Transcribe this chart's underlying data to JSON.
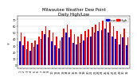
{
  "title_line1": "Milwaukee Weather Dew Point",
  "title_line2": "Daily High/Low",
  "ylabel_left": "°F",
  "background_color": "#ffffff",
  "grid_color": "#cccccc",
  "high_color": "#ff0000",
  "low_color": "#0000cc",
  "days": [
    1,
    2,
    3,
    4,
    5,
    6,
    7,
    8,
    9,
    10,
    11,
    12,
    13,
    14,
    15,
    16,
    17,
    18,
    19,
    20,
    21,
    22,
    23,
    24,
    25,
    26,
    27,
    28,
    29,
    30,
    31
  ],
  "highs": [
    50,
    44,
    36,
    34,
    38,
    44,
    52,
    60,
    54,
    50,
    44,
    38,
    56,
    62,
    55,
    48,
    44,
    48,
    52,
    55,
    58,
    62,
    66,
    68,
    70,
    66,
    60,
    52,
    48,
    56,
    42
  ],
  "lows": [
    36,
    30,
    24,
    22,
    28,
    32,
    40,
    48,
    42,
    36,
    30,
    26,
    42,
    50,
    42,
    34,
    32,
    34,
    38,
    42,
    44,
    50,
    52,
    54,
    56,
    50,
    44,
    40,
    32,
    42,
    30
  ],
  "ylim_min": -5,
  "ylim_max": 75,
  "yticks": [
    0,
    10,
    20,
    30,
    40,
    50,
    60,
    70
  ],
  "ytick_labels": [
    "0",
    "10",
    "20",
    "30",
    "40",
    "50",
    "60",
    "70"
  ],
  "title_fontsize": 3.8,
  "tick_fontsize": 2.5,
  "legend_fontsize": 3.0,
  "bar_width": 0.38
}
